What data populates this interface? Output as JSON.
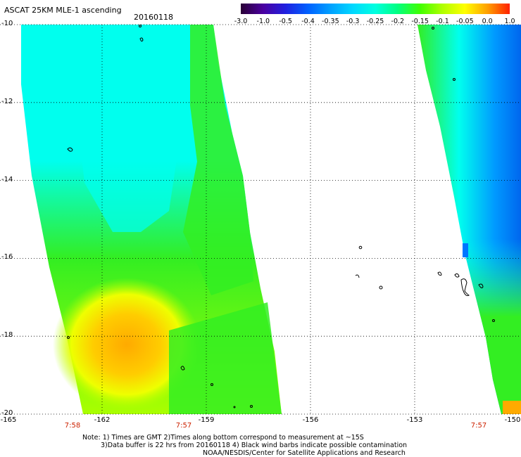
{
  "header": {
    "title": "ASCAT 25KM MLE-1 ascending",
    "date": "20160118"
  },
  "colorbar": {
    "labels": [
      "-3.0",
      "-1.0",
      "-0.5",
      "-0.4",
      "-0.35",
      "-0.3",
      "-0.25",
      "-0.2",
      "-0.15",
      "-0.1",
      "-0.05",
      "0.0",
      "1.0"
    ],
    "colors": [
      "#2a0035",
      "#4a00a0",
      "#2020e0",
      "#0060ff",
      "#00a0ff",
      "#00d8ff",
      "#00ffe0",
      "#00ff80",
      "#40ff00",
      "#b0ff00",
      "#ffff00",
      "#ffa000",
      "#ff2000"
    ]
  },
  "axes": {
    "y_labels": [
      "-10",
      "-12",
      "-14",
      "-16",
      "-18",
      "-20"
    ],
    "x_labels": [
      "-165",
      "-162",
      "-159",
      "-156",
      "-153",
      "-150"
    ],
    "time_labels": [
      "7:58",
      "7:57",
      "7:57"
    ]
  },
  "notes": {
    "line1": "Note: 1) Times are GMT 2)Times along bottom correspond to measurement at ~15S",
    "line2": "3)Data buffer is 22 hrs from 20160118 4) Black wind barbs indicate possible contamination",
    "line3": "NOAA/NESDIS/Center for Satellite Applications and Research"
  },
  "colors": {
    "swath_green": "#33ee22",
    "swath_cyan": "#00ffee",
    "swath_yellow": "#ffee00",
    "swath_orange": "#ffaa00",
    "swath_blue": "#0077ff",
    "swath_lime": "#aaff00"
  }
}
